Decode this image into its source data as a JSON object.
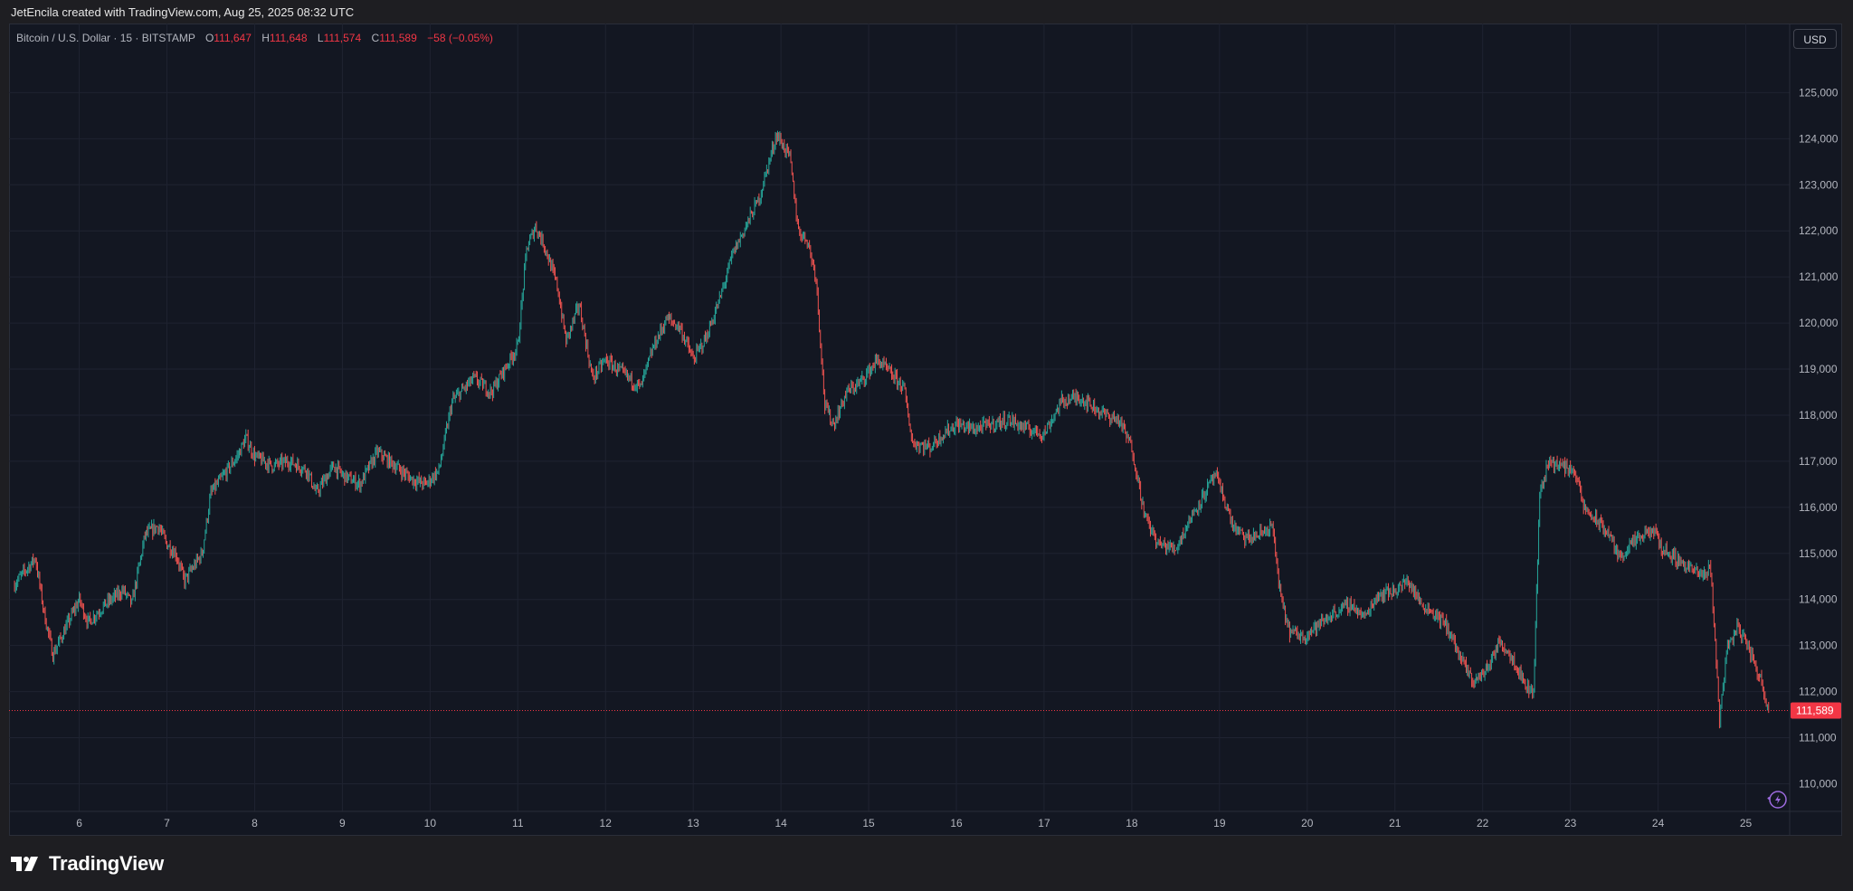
{
  "attribution": "JetEncila created with TradingView.com, Aug 25, 2025 08:32 UTC",
  "legend": {
    "symbol": "Bitcoin / U.S. Dollar · 15 · BITSTAMP",
    "o_label": "O",
    "o_value": "111,647",
    "h_label": "H",
    "h_value": "111,648",
    "l_label": "L",
    "l_value": "111,574",
    "c_label": "C",
    "c_value": "111,589",
    "change": "−58 (−0.05%)"
  },
  "currency_button": "USD",
  "brand": {
    "name": "TradingView",
    "logo_icon": "tradingview-logo-icon"
  },
  "colors": {
    "background": "#131722",
    "up": "#26a69a",
    "down": "#ef5350",
    "grid": "#1f2331",
    "last_price": "#f23645"
  },
  "chart_data": {
    "type": "line",
    "title": "Bitcoin / U.S. Dollar · 15 · BITSTAMP",
    "interval": "15",
    "x_ticks": [
      "6",
      "7",
      "8",
      "9",
      "10",
      "11",
      "12",
      "13",
      "14",
      "15",
      "16",
      "17",
      "18",
      "19",
      "20",
      "21",
      "22",
      "23",
      "24",
      "25"
    ],
    "y_ticks": [
      "110,000",
      "111,000",
      "112,000",
      "113,000",
      "114,000",
      "115,000",
      "116,000",
      "117,000",
      "118,000",
      "119,000",
      "120,000",
      "121,000",
      "122,000",
      "123,000",
      "124,000",
      "125,000"
    ],
    "ylim": [
      109400,
      126500
    ],
    "xlim": [
      5.2,
      25.5
    ],
    "last_price": 111589,
    "last_price_label": "111,589",
    "series": [
      {
        "values": [
          [
            5.25,
            114300
          ],
          [
            5.5,
            114900
          ],
          [
            5.6,
            113700
          ],
          [
            5.7,
            112800
          ],
          [
            5.9,
            113600
          ],
          [
            6.0,
            114000
          ],
          [
            6.1,
            113500
          ],
          [
            6.3,
            113900
          ],
          [
            6.5,
            114200
          ],
          [
            6.6,
            113900
          ],
          [
            6.75,
            115400
          ],
          [
            6.9,
            115600
          ],
          [
            7.0,
            115200
          ],
          [
            7.1,
            115000
          ],
          [
            7.2,
            114400
          ],
          [
            7.3,
            114700
          ],
          [
            7.4,
            115000
          ],
          [
            7.5,
            116300
          ],
          [
            7.65,
            116700
          ],
          [
            7.8,
            117100
          ],
          [
            7.9,
            117500
          ],
          [
            8.0,
            117100
          ],
          [
            8.2,
            116900
          ],
          [
            8.4,
            117000
          ],
          [
            8.6,
            116800
          ],
          [
            8.7,
            116300
          ],
          [
            8.9,
            116900
          ],
          [
            9.0,
            116700
          ],
          [
            9.2,
            116500
          ],
          [
            9.4,
            117200
          ],
          [
            9.6,
            116900
          ],
          [
            9.8,
            116600
          ],
          [
            9.95,
            116500
          ],
          [
            10.1,
            116800
          ],
          [
            10.25,
            118300
          ],
          [
            10.5,
            118800
          ],
          [
            10.7,
            118500
          ],
          [
            10.85,
            119000
          ],
          [
            11.0,
            119500
          ],
          [
            11.1,
            121600
          ],
          [
            11.2,
            122100
          ],
          [
            11.3,
            121700
          ],
          [
            11.45,
            120800
          ],
          [
            11.55,
            119600
          ],
          [
            11.7,
            120400
          ],
          [
            11.85,
            118800
          ],
          [
            12.0,
            119200
          ],
          [
            12.2,
            118900
          ],
          [
            12.4,
            118600
          ],
          [
            12.55,
            119500
          ],
          [
            12.7,
            120100
          ],
          [
            12.85,
            119900
          ],
          [
            13.0,
            119200
          ],
          [
            13.15,
            119700
          ],
          [
            13.3,
            120500
          ],
          [
            13.45,
            121500
          ],
          [
            13.6,
            122100
          ],
          [
            13.75,
            122700
          ],
          [
            13.85,
            123400
          ],
          [
            13.95,
            124100
          ],
          [
            14.1,
            123600
          ],
          [
            14.2,
            122000
          ],
          [
            14.3,
            121800
          ],
          [
            14.4,
            121000
          ],
          [
            14.5,
            118200
          ],
          [
            14.6,
            117800
          ],
          [
            14.75,
            118500
          ],
          [
            14.9,
            118700
          ],
          [
            15.1,
            119200
          ],
          [
            15.25,
            118900
          ],
          [
            15.4,
            118600
          ],
          [
            15.5,
            117400
          ],
          [
            15.7,
            117300
          ],
          [
            15.85,
            117600
          ],
          [
            16.0,
            117800
          ],
          [
            16.2,
            117700
          ],
          [
            16.4,
            117800
          ],
          [
            16.6,
            117900
          ],
          [
            16.8,
            117700
          ],
          [
            17.0,
            117600
          ],
          [
            17.2,
            118300
          ],
          [
            17.4,
            118400
          ],
          [
            17.55,
            118200
          ],
          [
            17.7,
            118000
          ],
          [
            17.85,
            117900
          ],
          [
            18.0,
            117300
          ],
          [
            18.15,
            115800
          ],
          [
            18.3,
            115200
          ],
          [
            18.5,
            115100
          ],
          [
            18.65,
            115700
          ],
          [
            18.8,
            116200
          ],
          [
            18.95,
            116700
          ],
          [
            19.05,
            116200
          ],
          [
            19.15,
            115600
          ],
          [
            19.3,
            115300
          ],
          [
            19.45,
            115400
          ],
          [
            19.6,
            115600
          ],
          [
            19.7,
            114000
          ],
          [
            19.8,
            113300
          ],
          [
            19.95,
            113200
          ],
          [
            20.1,
            113400
          ],
          [
            20.3,
            113700
          ],
          [
            20.5,
            113900
          ],
          [
            20.65,
            113600
          ],
          [
            20.8,
            114100
          ],
          [
            21.0,
            114200
          ],
          [
            21.15,
            114400
          ],
          [
            21.3,
            113900
          ],
          [
            21.45,
            113700
          ],
          [
            21.6,
            113400
          ],
          [
            21.75,
            112700
          ],
          [
            21.9,
            112200
          ],
          [
            22.05,
            112500
          ],
          [
            22.2,
            113100
          ],
          [
            22.35,
            112700
          ],
          [
            22.5,
            112100
          ],
          [
            22.58,
            112000
          ],
          [
            22.65,
            116300
          ],
          [
            22.75,
            117000
          ],
          [
            22.9,
            116900
          ],
          [
            23.05,
            116800
          ],
          [
            23.15,
            116000
          ],
          [
            23.3,
            115700
          ],
          [
            23.45,
            115400
          ],
          [
            23.55,
            114900
          ],
          [
            23.7,
            115200
          ],
          [
            23.85,
            115400
          ],
          [
            23.95,
            115500
          ],
          [
            24.05,
            115100
          ],
          [
            24.2,
            114900
          ],
          [
            24.35,
            114700
          ],
          [
            24.5,
            114500
          ],
          [
            24.6,
            114700
          ],
          [
            24.7,
            111400
          ],
          [
            24.78,
            112900
          ],
          [
            24.9,
            113400
          ],
          [
            25.0,
            113100
          ],
          [
            25.08,
            112700
          ],
          [
            25.18,
            112200
          ],
          [
            25.26,
            111589
          ]
        ]
      }
    ]
  }
}
